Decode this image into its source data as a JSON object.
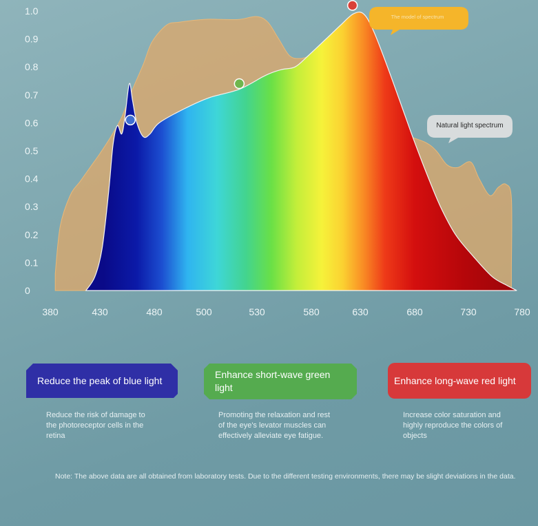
{
  "chart_data": {
    "type": "area",
    "xlim": [
      380,
      780
    ],
    "ylim": [
      0,
      1.0
    ],
    "x_ticks": [
      "380",
      "430",
      "480",
      "500",
      "530",
      "580",
      "630",
      "680",
      "730",
      "780"
    ],
    "y_ticks": [
      "0",
      "0.1",
      "0.2",
      "0.3",
      "0.4",
      "0.5",
      "0.6",
      "0.7",
      "0.8",
      "0.9",
      "1.0"
    ],
    "series": [
      {
        "name": "Natural light spectrum",
        "color": "#e0a868",
        "points": [
          [
            385,
            0.06
          ],
          [
            390,
            0.23
          ],
          [
            400,
            0.34
          ],
          [
            410,
            0.39
          ],
          [
            420,
            0.44
          ],
          [
            430,
            0.49
          ],
          [
            440,
            0.55
          ],
          [
            450,
            0.62
          ],
          [
            460,
            0.72
          ],
          [
            470,
            0.81
          ],
          [
            478,
            0.89
          ],
          [
            485,
            0.95
          ],
          [
            490,
            0.96
          ],
          [
            500,
            0.97
          ],
          [
            510,
            0.97
          ],
          [
            520,
            0.97
          ],
          [
            530,
            0.98
          ],
          [
            540,
            0.96
          ],
          [
            550,
            0.9
          ],
          [
            560,
            0.84
          ],
          [
            570,
            0.83
          ],
          [
            580,
            0.84
          ],
          [
            600,
            0.85
          ],
          [
            615,
            0.8
          ],
          [
            625,
            0.73
          ],
          [
            640,
            0.66
          ],
          [
            655,
            0.6
          ],
          [
            670,
            0.56
          ],
          [
            690,
            0.53
          ],
          [
            700,
            0.5
          ],
          [
            710,
            0.45
          ],
          [
            720,
            0.44
          ],
          [
            732,
            0.46
          ],
          [
            740,
            0.4
          ],
          [
            750,
            0.34
          ],
          [
            758,
            0.37
          ],
          [
            765,
            0.38
          ],
          [
            770,
            0.33
          ],
          [
            770,
            0.08
          ]
        ]
      },
      {
        "name": "The model of spectrum",
        "points": [
          [
            416,
            0.0
          ],
          [
            425,
            0.05
          ],
          [
            432,
            0.15
          ],
          [
            438,
            0.35
          ],
          [
            442,
            0.52
          ],
          [
            446,
            0.59
          ],
          [
            450,
            0.56
          ],
          [
            453,
            0.62
          ],
          [
            457,
            0.74
          ],
          [
            460,
            0.68
          ],
          [
            464,
            0.6
          ],
          [
            470,
            0.55
          ],
          [
            476,
            0.56
          ],
          [
            482,
            0.6
          ],
          [
            492,
            0.65
          ],
          [
            503,
            0.69
          ],
          [
            520,
            0.72
          ],
          [
            538,
            0.77
          ],
          [
            552,
            0.79
          ],
          [
            565,
            0.8
          ],
          [
            577,
            0.84
          ],
          [
            595,
            0.9
          ],
          [
            610,
            0.95
          ],
          [
            623,
            0.99
          ],
          [
            633,
            0.99
          ],
          [
            642,
            0.93
          ],
          [
            655,
            0.8
          ],
          [
            668,
            0.66
          ],
          [
            680,
            0.53
          ],
          [
            692,
            0.41
          ],
          [
            704,
            0.3
          ],
          [
            718,
            0.2
          ],
          [
            735,
            0.12
          ],
          [
            752,
            0.05
          ],
          [
            765,
            0.02
          ],
          [
            775,
            0.0
          ]
        ]
      }
    ],
    "markers": [
      {
        "name": "blue-peak-marker",
        "x": 458,
        "y": 0.61,
        "color": "#3f6fd3"
      },
      {
        "name": "green-marker",
        "x": 520,
        "y": 0.74,
        "color": "#6fb64e"
      },
      {
        "name": "red-peak-marker",
        "x": 622,
        "y": 1.02,
        "color": "#d94038"
      }
    ],
    "callouts": {
      "model": {
        "text": "The model of spectrum",
        "color": "#f5b52a",
        "text_color": "#f8e4b0"
      },
      "natural": {
        "text": "Natural light spectrum",
        "color": "#d8dcdd",
        "text_color": "#2a2a2a"
      }
    }
  },
  "cards": {
    "blue": {
      "title": "Reduce the peak of blue light",
      "desc": "Reduce the risk of damage to the photoreceptor cells in the retina",
      "color": "#2f2fa6"
    },
    "green": {
      "title": "Enhance short-wave green light",
      "desc": "Promoting the relaxation and rest of the eye's levator muscles can effectively alleviate eye fatigue.",
      "color": "#55ab4f"
    },
    "red": {
      "title": "Enhance long-wave red light",
      "desc": "Increase color saturation and highly reproduce the colors of objects",
      "color": "#d7393a"
    }
  },
  "note": "Note: The above data are all obtained from laboratory tests. Due to the different testing environments, there may be slight deviations in the data."
}
